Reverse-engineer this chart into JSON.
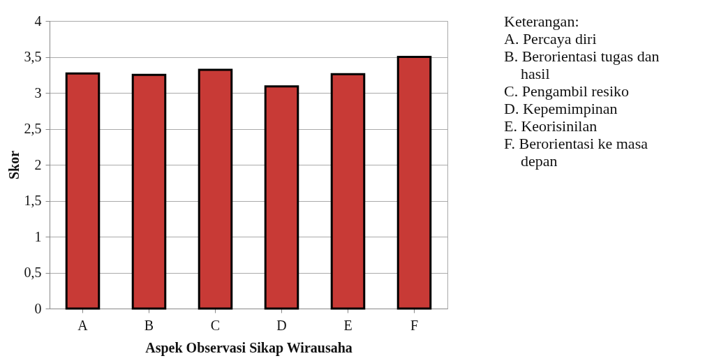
{
  "chart_data": {
    "type": "bar",
    "xlabel": "Aspek Observasi Sikap Wirausaha",
    "ylabel": "Skor",
    "categories": [
      "A",
      "B",
      "C",
      "D",
      "E",
      "F"
    ],
    "values": [
      3.27,
      3.25,
      3.32,
      3.09,
      3.26,
      3.5
    ],
    "color": "#c83a36",
    "ylim": [
      0,
      4
    ],
    "yticks": [
      0,
      {
        "value": 0.5,
        "label": "0,5"
      },
      1,
      {
        "value": 1.5,
        "label": "1,5"
      },
      2,
      {
        "value": 2.5,
        "label": "2,5"
      },
      3,
      {
        "value": 3.5,
        "label": "3,5"
      },
      4
    ],
    "grid": "y",
    "annotations": [
      "Keterangan:",
      "A. Percaya diri",
      "B. Berorientasi tugas dan hasil",
      "C. Pengambil resiko",
      "D. Kepemimpinan",
      "E. Keorisinilan",
      "F. Berorientasi ke masa depan"
    ]
  }
}
